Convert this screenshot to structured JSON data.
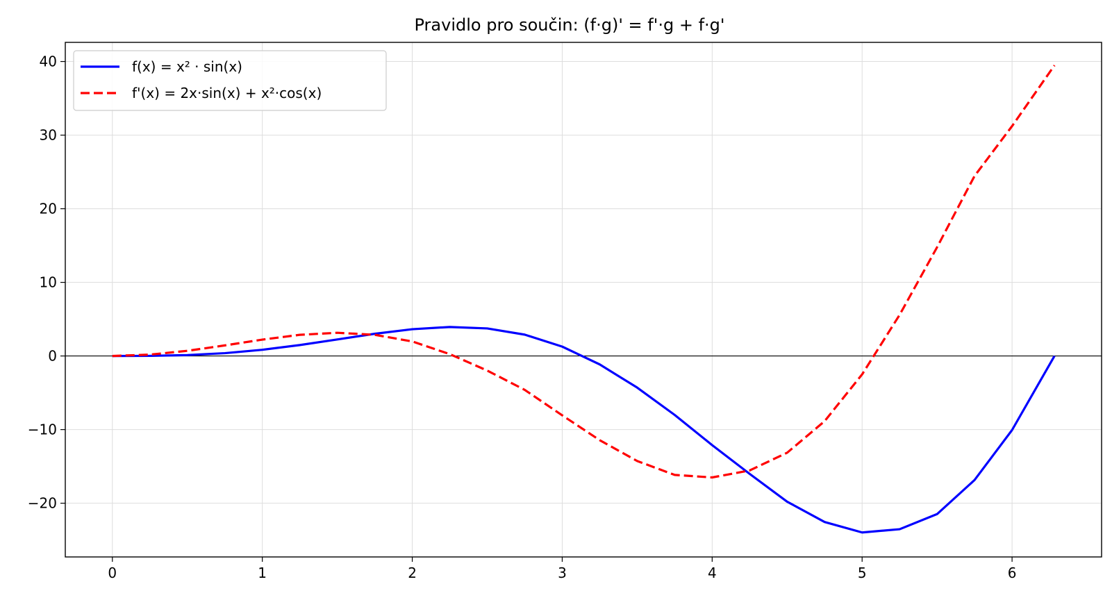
{
  "chart_data": {
    "type": "line",
    "title": "Pravidlo pro součin: (f·g)' = f'·g + f·g'",
    "xlabel": "",
    "ylabel": "",
    "xlim": [
      -0.314,
      6.597
    ],
    "ylim": [
      -27.3,
      42.6
    ],
    "x_ticks": [
      0,
      1,
      2,
      3,
      4,
      5,
      6
    ],
    "x_tick_labels": [
      "0",
      "1",
      "2",
      "3",
      "4",
      "5",
      "6"
    ],
    "y_ticks": [
      -20,
      -10,
      0,
      10,
      20,
      30,
      40
    ],
    "y_tick_labels": [
      "−20",
      "−10",
      "0",
      "10",
      "20",
      "30",
      "40"
    ],
    "grid": true,
    "zero_line": true,
    "legend_position": "upper-left",
    "series": [
      {
        "name": "f(x) = x² · sin(x)",
        "color": "#0000ff",
        "style": "solid",
        "x": [
          0,
          0.25,
          0.5,
          0.75,
          1,
          1.25,
          1.5,
          1.75,
          2,
          2.25,
          2.5,
          2.75,
          3,
          3.25,
          3.5,
          3.75,
          4,
          4.25,
          4.5,
          4.75,
          5,
          5.25,
          5.5,
          5.75,
          6,
          6.283
        ],
        "y": [
          0,
          0.015,
          0.12,
          0.383,
          0.841,
          1.482,
          2.244,
          3.015,
          3.637,
          3.937,
          3.741,
          2.897,
          1.27,
          -1.146,
          -4.297,
          -8.01,
          -12.109,
          -16.019,
          -19.794,
          -22.554,
          -23.973,
          -23.532,
          -21.479,
          -16.85,
          -10.06,
          0
        ]
      },
      {
        "name": "f'(x) = 2x·sin(x) + x²·cos(x)",
        "color": "#ff0000",
        "style": "dashed",
        "x": [
          0,
          0.25,
          0.5,
          0.75,
          1,
          1.25,
          1.5,
          1.75,
          2,
          2.25,
          2.5,
          2.75,
          3,
          3.25,
          3.5,
          3.75,
          4,
          4.25,
          4.5,
          4.75,
          5,
          5.25,
          5.5,
          5.75,
          6,
          6.283
        ],
        "y": [
          0,
          0.185,
          0.699,
          1.434,
          2.223,
          2.873,
          3.152,
          2.875,
          1.973,
          0.252,
          -1.984,
          -4.603,
          -8.063,
          -11.437,
          -14.268,
          -16.158,
          -16.5,
          -15.55,
          -13.143,
          -8.852,
          -2.501,
          5.581,
          14.774,
          24.455,
          31.221,
          39.478
        ]
      }
    ]
  }
}
